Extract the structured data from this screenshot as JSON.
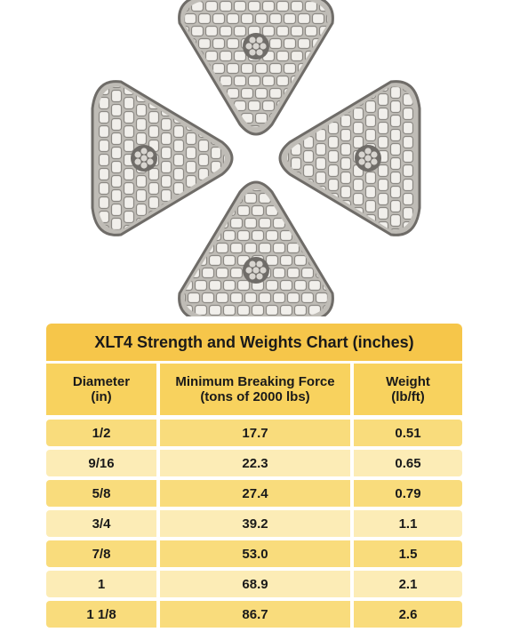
{
  "diagram": {
    "icon": "rope-cross-section-icon"
  },
  "table": {
    "title": "XLT4 Strength and Weights Chart (inches)",
    "headers": [
      "Diameter\n(in)",
      "Minimum Breaking Force\n(tons of 2000 lbs)",
      "Weight\n(lb/ft)"
    ],
    "rows": [
      [
        "1/2",
        "17.7",
        "0.51"
      ],
      [
        "9/16",
        "22.3",
        "0.65"
      ],
      [
        "5/8",
        "27.4",
        "0.79"
      ],
      [
        "3/4",
        "39.2",
        "1.1"
      ],
      [
        "7/8",
        "53.0",
        "1.5"
      ],
      [
        "1",
        "68.9",
        "2.1"
      ],
      [
        "1 1/8",
        "86.7",
        "2.6"
      ]
    ]
  },
  "colors": {
    "title_bg": "#f6c64a",
    "header_bg": "#f8d25e",
    "row_dark": "#f9dc7c",
    "row_light": "#fcecb6"
  }
}
